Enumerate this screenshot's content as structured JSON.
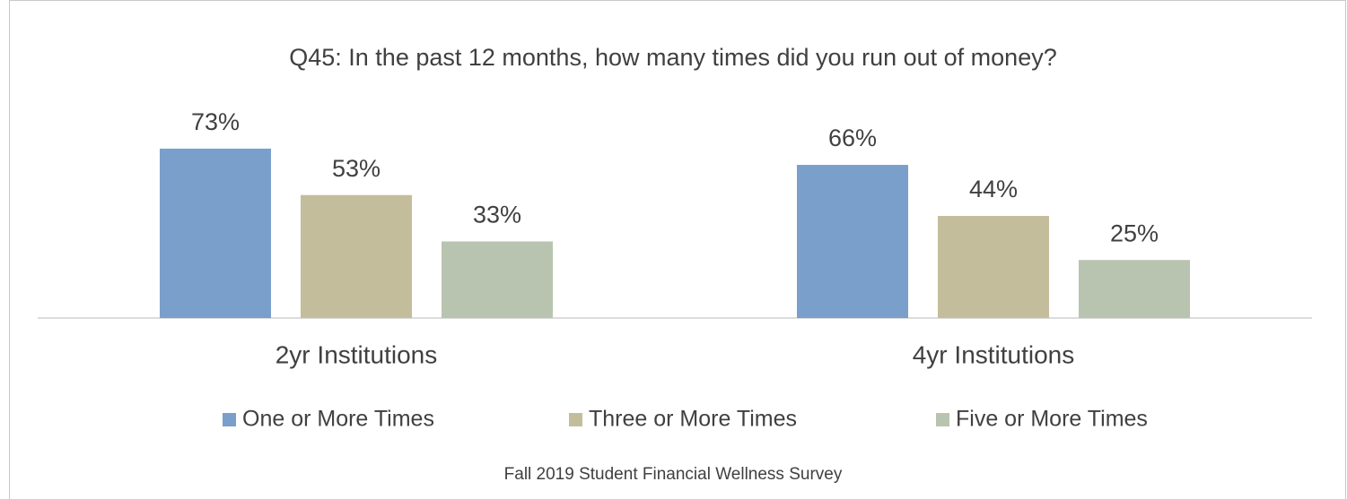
{
  "chart_data": {
    "type": "bar",
    "title": "Q45: In the past 12 months, how many times did you run out of money?",
    "categories": [
      "2yr Institutions",
      "4yr Institutions"
    ],
    "series": [
      {
        "name": "One or More Times",
        "color": "#7a9fcb",
        "values": [
          73,
          66
        ],
        "value_labels": [
          "73%",
          "66%"
        ]
      },
      {
        "name": "Three or More Times",
        "color": "#c4bd9c",
        "values": [
          53,
          44
        ],
        "value_labels": [
          "53%",
          "44%"
        ]
      },
      {
        "name": "Five or More Times",
        "color": "#b8c4b0",
        "values": [
          33,
          25
        ],
        "value_labels": [
          "33%",
          "25%"
        ]
      }
    ],
    "legend": "bottom",
    "caption": "Fall 2019 Student Financial Wellness Survey"
  }
}
